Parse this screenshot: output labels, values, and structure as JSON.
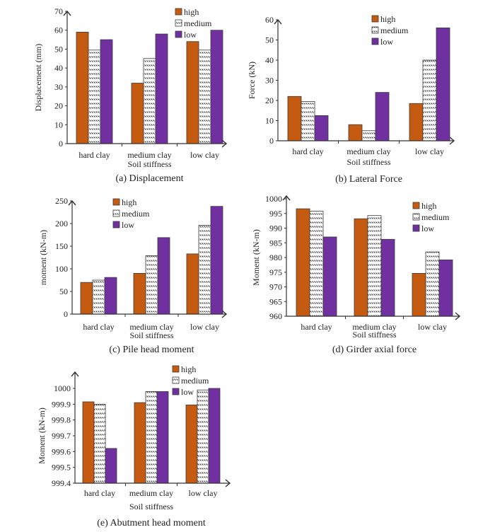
{
  "colors": {
    "high": "#c55a11",
    "medium": "#ffffff",
    "low": "#7030a0",
    "axis": "#333333"
  },
  "chart_data": [
    {
      "id": "a",
      "type": "bar",
      "title": "(a) Displacement",
      "xlabel": "Soil stiffness",
      "ylabel": "Displacement (mm)",
      "categories": [
        "hard clay",
        "medium clay",
        "low clay"
      ],
      "ylim": [
        0,
        70
      ],
      "yticks": [
        0,
        10,
        20,
        30,
        40,
        50,
        60,
        70
      ],
      "legend_position": "top-right",
      "series": [
        {
          "name": "high",
          "values": [
            59,
            32,
            54
          ]
        },
        {
          "name": "medium",
          "values": [
            49.5,
            45,
            49.5
          ]
        },
        {
          "name": "low",
          "values": [
            55,
            58,
            60
          ]
        }
      ]
    },
    {
      "id": "b",
      "type": "bar",
      "title": "(b) Lateral Force",
      "xlabel": "Soil stiffness",
      "ylabel": "Force (kN)",
      "categories": [
        "hard clay",
        "medium clay",
        "low clay"
      ],
      "ylim": [
        0,
        60
      ],
      "yticks": [
        0,
        10,
        20,
        30,
        40,
        50,
        60
      ],
      "legend_position": "top-center",
      "series": [
        {
          "name": "high",
          "values": [
            22,
            8,
            18.5
          ]
        },
        {
          "name": "medium",
          "values": [
            19.5,
            5,
            40
          ]
        },
        {
          "name": "low",
          "values": [
            12.5,
            24,
            56
          ]
        }
      ]
    },
    {
      "id": "c",
      "type": "bar",
      "title": "(c) Pile head moment",
      "xlabel": "Soil stiffness",
      "ylabel": "moment (kN-m)",
      "categories": [
        "hard clay",
        "medium clay",
        "low clay"
      ],
      "ylim": [
        0,
        250
      ],
      "yticks": [
        0,
        50,
        100,
        150,
        200,
        250
      ],
      "legend_position": "top-left",
      "series": [
        {
          "name": "high",
          "values": [
            70,
            90,
            133
          ]
        },
        {
          "name": "medium",
          "values": [
            75,
            129,
            196
          ]
        },
        {
          "name": "low",
          "values": [
            81,
            169,
            238
          ]
        }
      ]
    },
    {
      "id": "d",
      "type": "bar",
      "title": "(d) Girder axial force",
      "xlabel": "Soil stiffness",
      "ylabel": "Moment (kN-m)",
      "categories": [
        "hard clay",
        "medium clay",
        "low clay"
      ],
      "ylim": [
        960,
        1000
      ],
      "yticks": [
        960,
        965,
        970,
        975,
        980,
        985,
        990,
        995,
        1000
      ],
      "legend_position": "top-right",
      "series": [
        {
          "name": "high",
          "values": [
            996.6,
            993.2,
            974.6
          ]
        },
        {
          "name": "medium",
          "values": [
            995.8,
            994.3,
            981.9
          ]
        },
        {
          "name": "low",
          "values": [
            987,
            986.2,
            979.2
          ]
        }
      ]
    },
    {
      "id": "e",
      "type": "bar",
      "title": "(e) Abutment head moment",
      "xlabel": "Soil stiffness",
      "ylabel": "Moment (kN-m)",
      "categories": [
        "hard clay",
        "medium clay",
        "low clay"
      ],
      "ylim": [
        999.4,
        1000
      ],
      "yticks": [
        "999.4",
        "999.5",
        "999.6",
        "999.7",
        "999.8",
        "999.9",
        "1000"
      ],
      "legend_position": "top-right",
      "series": [
        {
          "name": "high",
          "values": [
            999.915,
            999.91,
            999.895
          ]
        },
        {
          "name": "medium",
          "values": [
            999.9,
            999.98,
            999.99
          ]
        },
        {
          "name": "low",
          "values": [
            999.62,
            999.98,
            1000.0
          ]
        }
      ]
    }
  ]
}
